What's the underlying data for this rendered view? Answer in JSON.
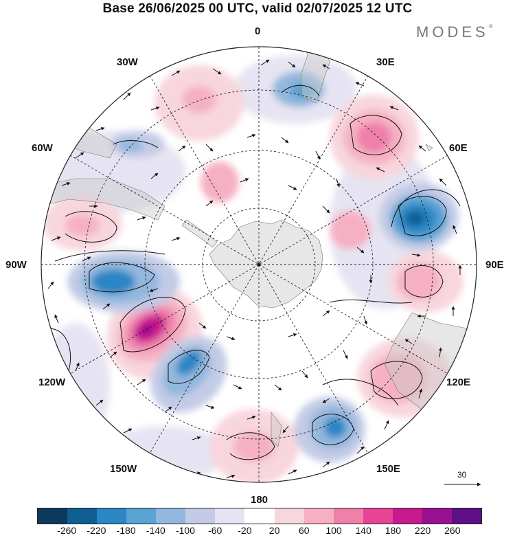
{
  "title": "Base 26/06/2025 00 UTC, valid 02/07/2025 12 UTC",
  "brand": "MODES",
  "brand_mark": "®",
  "longitude_labels": [
    "0",
    "30E",
    "60E",
    "90E",
    "120E",
    "150E",
    "180",
    "150W",
    "120W",
    "90W",
    "60W",
    "30W"
  ],
  "vector_reference": "30",
  "colorbar": {
    "colors": [
      "#0b3a5c",
      "#0f5f94",
      "#2b86c4",
      "#5ba3d4",
      "#93b7dd",
      "#c3cbe6",
      "#e6e4f2",
      "#ffffff",
      "#f8d6dd",
      "#f5b1c3",
      "#ee80aa",
      "#e64596",
      "#c8198f",
      "#99118e",
      "#5e0f86"
    ],
    "tick_labels": [
      "-260",
      "-220",
      "-180",
      "-140",
      "-100",
      "-60",
      "-20",
      "20",
      "60",
      "100",
      "140",
      "180",
      "220",
      "260"
    ]
  }
}
